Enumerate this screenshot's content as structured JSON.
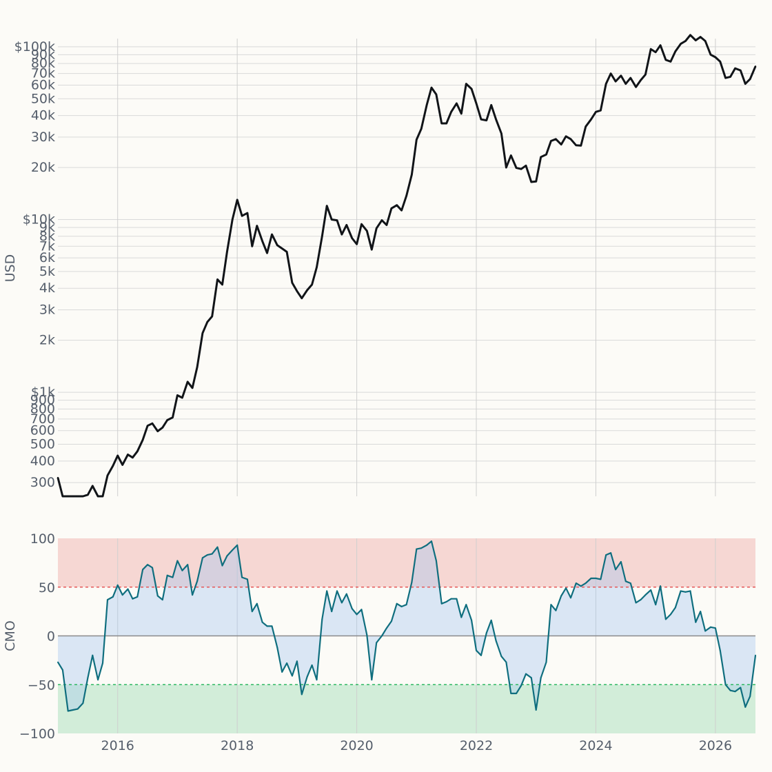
{
  "chart_data": [
    {
      "type": "line",
      "panel": "price",
      "ylabel": "USD",
      "yscale": "log",
      "ylim": [
        250,
        120000
      ],
      "xlim": [
        2015.0,
        2026.67
      ],
      "grid": true,
      "line_color": "#111418",
      "xticks": [
        2016,
        2018,
        2020,
        2022,
        2024,
        2026
      ],
      "ytick_values": [
        300,
        400,
        500,
        600,
        700,
        800,
        900,
        1000,
        2000,
        3000,
        4000,
        5000,
        6000,
        7000,
        8000,
        9000,
        10000,
        20000,
        30000,
        40000,
        50000,
        60000,
        70000,
        80000,
        90000,
        100000
      ],
      "ytick_labels": [
        "300",
        "400",
        "500",
        "600",
        "700",
        "800",
        "900",
        "$1k",
        "2k",
        "3k",
        "4k",
        "5k",
        "6k",
        "7k",
        "8k",
        "9k",
        "$10k",
        "20k",
        "30k",
        "40k",
        "50k",
        "60k",
        "70k",
        "80k",
        "90k",
        "$100k"
      ],
      "x": [
        2015.0,
        2015.08,
        2015.17,
        2015.25,
        2015.33,
        2015.42,
        2015.5,
        2015.58,
        2015.67,
        2015.75,
        2015.83,
        2015.92,
        2016.0,
        2016.08,
        2016.17,
        2016.25,
        2016.33,
        2016.42,
        2016.5,
        2016.58,
        2016.67,
        2016.75,
        2016.83,
        2016.92,
        2017.0,
        2017.08,
        2017.17,
        2017.25,
        2017.33,
        2017.42,
        2017.5,
        2017.58,
        2017.67,
        2017.75,
        2017.83,
        2017.92,
        2018.0,
        2018.08,
        2018.17,
        2018.25,
        2018.33,
        2018.42,
        2018.5,
        2018.58,
        2018.67,
        2018.75,
        2018.83,
        2018.92,
        2019.0,
        2019.08,
        2019.17,
        2019.25,
        2019.33,
        2019.42,
        2019.5,
        2019.58,
        2019.67,
        2019.75,
        2019.83,
        2019.92,
        2020.0,
        2020.08,
        2020.17,
        2020.25,
        2020.33,
        2020.42,
        2020.5,
        2020.58,
        2020.67,
        2020.75,
        2020.83,
        2020.92,
        2021.0,
        2021.08,
        2021.17,
        2021.25,
        2021.33,
        2021.42,
        2021.5,
        2021.58,
        2021.67,
        2021.75,
        2021.83,
        2021.92,
        2022.0,
        2022.08,
        2022.17,
        2022.25,
        2022.33,
        2022.42,
        2022.5,
        2022.58,
        2022.67,
        2022.75,
        2022.83,
        2022.92,
        2023.0,
        2023.08,
        2023.17,
        2023.25,
        2023.33,
        2023.42,
        2023.5,
        2023.58,
        2023.67,
        2023.75,
        2023.83,
        2023.92,
        2024.0,
        2024.08,
        2024.17,
        2024.25,
        2024.33,
        2024.42,
        2024.5,
        2024.58,
        2024.67,
        2024.75,
        2024.83,
        2024.92,
        2025.0,
        2025.08,
        2025.17,
        2025.25,
        2025.33,
        2025.42,
        2025.5,
        2025.58,
        2025.67,
        2025.75,
        2025.83,
        2025.92,
        2026.0,
        2026.08,
        2026.17,
        2026.25,
        2026.33,
        2026.42,
        2026.5,
        2026.58,
        2026.67
      ],
      "values": [
        320,
        218,
        246,
        240,
        225,
        232,
        255,
        287,
        222,
        232,
        330,
        375,
        430,
        380,
        436,
        419,
        455,
        530,
        640,
        660,
        595,
        625,
        690,
        715,
        960,
        930,
        1150,
        1060,
        1400,
        2200,
        2550,
        2750,
        4500,
        4200,
        6500,
        10000,
        13000,
        10500,
        10900,
        7000,
        9200,
        7500,
        6400,
        8200,
        7100,
        6800,
        6500,
        4300,
        3850,
        3500,
        3900,
        4200,
        5300,
        8000,
        12000,
        10000,
        9900,
        8200,
        9300,
        7800,
        7200,
        9400,
        8600,
        6700,
        8900,
        9900,
        9300,
        11600,
        12100,
        11300,
        13700,
        18200,
        29000,
        33500,
        46000,
        58000,
        53000,
        36000,
        36000,
        42000,
        47000,
        41000,
        61000,
        57000,
        47000,
        38000,
        37500,
        46000,
        38000,
        31500,
        20000,
        23500,
        19900,
        19600,
        20500,
        16500,
        16600,
        23000,
        23800,
        28500,
        29200,
        27200,
        30300,
        29200,
        26900,
        26800,
        34500,
        38000,
        42000,
        42800,
        61000,
        70000,
        63000,
        68000,
        61000,
        66000,
        58500,
        64000,
        69000,
        97000,
        93000,
        102000,
        84000,
        82000,
        94000,
        104000,
        108000,
        117000,
        109000,
        114000,
        108000,
        90000,
        87000,
        82000,
        66000,
        67000,
        75000,
        73000,
        61000,
        65000,
        77000
      ]
    },
    {
      "type": "area",
      "panel": "oscillator",
      "ylabel": "CMO",
      "ylim": [
        -100,
        100
      ],
      "xlim": [
        2015.0,
        2026.67
      ],
      "grid": true,
      "line_color": "#0f6e7e",
      "overbought_level": 50,
      "oversold_level": -50,
      "zero_level": 0,
      "overbought_color": "#e55757",
      "oversold_color": "#2eb862",
      "fill_color": "#a3c4ee",
      "xticks": [
        2016,
        2018,
        2020,
        2022,
        2024,
        2026
      ],
      "xtick_labels": [
        "2016",
        "2018",
        "2020",
        "2022",
        "2024",
        "2026"
      ],
      "ytick_values": [
        100,
        50,
        0,
        -50,
        -100
      ],
      "ytick_labels": [
        "100",
        "50",
        "0",
        "−50",
        "−100"
      ],
      "x": [
        2015.0,
        2015.08,
        2015.17,
        2015.25,
        2015.33,
        2015.42,
        2015.5,
        2015.58,
        2015.67,
        2015.75,
        2015.83,
        2015.92,
        2016.0,
        2016.08,
        2016.17,
        2016.25,
        2016.33,
        2016.42,
        2016.5,
        2016.58,
        2016.67,
        2016.75,
        2016.83,
        2016.92,
        2017.0,
        2017.08,
        2017.17,
        2017.25,
        2017.33,
        2017.42,
        2017.5,
        2017.58,
        2017.67,
        2017.75,
        2017.83,
        2017.92,
        2018.0,
        2018.08,
        2018.17,
        2018.25,
        2018.33,
        2018.42,
        2018.5,
        2018.58,
        2018.67,
        2018.75,
        2018.83,
        2018.92,
        2019.0,
        2019.08,
        2019.17,
        2019.25,
        2019.33,
        2019.42,
        2019.5,
        2019.58,
        2019.67,
        2019.75,
        2019.83,
        2019.92,
        2020.0,
        2020.08,
        2020.17,
        2020.25,
        2020.33,
        2020.42,
        2020.5,
        2020.58,
        2020.67,
        2020.75,
        2020.83,
        2020.92,
        2021.0,
        2021.08,
        2021.17,
        2021.25,
        2021.33,
        2021.42,
        2021.5,
        2021.58,
        2021.67,
        2021.75,
        2021.83,
        2021.92,
        2022.0,
        2022.08,
        2022.17,
        2022.25,
        2022.33,
        2022.42,
        2022.5,
        2022.58,
        2022.67,
        2022.75,
        2022.83,
        2022.92,
        2023.0,
        2023.08,
        2023.17,
        2023.25,
        2023.33,
        2023.42,
        2023.5,
        2023.58,
        2023.67,
        2023.75,
        2023.83,
        2023.92,
        2024.0,
        2024.08,
        2024.17,
        2024.25,
        2024.33,
        2024.42,
        2024.5,
        2024.58,
        2024.67,
        2024.75,
        2024.83,
        2024.92,
        2025.0,
        2025.08,
        2025.17,
        2025.25,
        2025.33,
        2025.42,
        2025.5,
        2025.58,
        2025.67,
        2025.75,
        2025.83,
        2025.92,
        2026.0,
        2026.08,
        2026.17,
        2026.25,
        2026.33,
        2026.42,
        2026.5,
        2026.58,
        2026.67
      ],
      "values": [
        -27,
        -35,
        -77,
        -76,
        -75,
        -69,
        -43,
        -20,
        -45,
        -28,
        37,
        40,
        52,
        42,
        48,
        38,
        40,
        68,
        73,
        70,
        41,
        37,
        62,
        60,
        77,
        67,
        73,
        42,
        56,
        80,
        83,
        84,
        91,
        72,
        82,
        88,
        93,
        60,
        58,
        25,
        33,
        14,
        10,
        10,
        -12,
        -37,
        -28,
        -41,
        -26,
        -60,
        -42,
        -30,
        -45,
        17,
        46,
        25,
        46,
        34,
        43,
        28,
        22,
        27,
        1,
        -45,
        -7,
        0,
        8,
        15,
        33,
        30,
        32,
        55,
        89,
        90,
        93,
        97,
        77,
        33,
        35,
        38,
        38,
        19,
        32,
        16,
        -15,
        -20,
        3,
        16,
        -5,
        -21,
        -27,
        -59,
        -59,
        -51,
        -39,
        -43,
        -76,
        -43,
        -27,
        32,
        26,
        41,
        49,
        39,
        54,
        51,
        54,
        59,
        59,
        58,
        83,
        85,
        68,
        76,
        56,
        54,
        34,
        37,
        42,
        47,
        32,
        51,
        17,
        22,
        29,
        46,
        45,
        46,
        14,
        25,
        5,
        9,
        8,
        -15,
        -50,
        -56,
        -57,
        -53,
        -73,
        -62,
        -20
      ]
    }
  ]
}
